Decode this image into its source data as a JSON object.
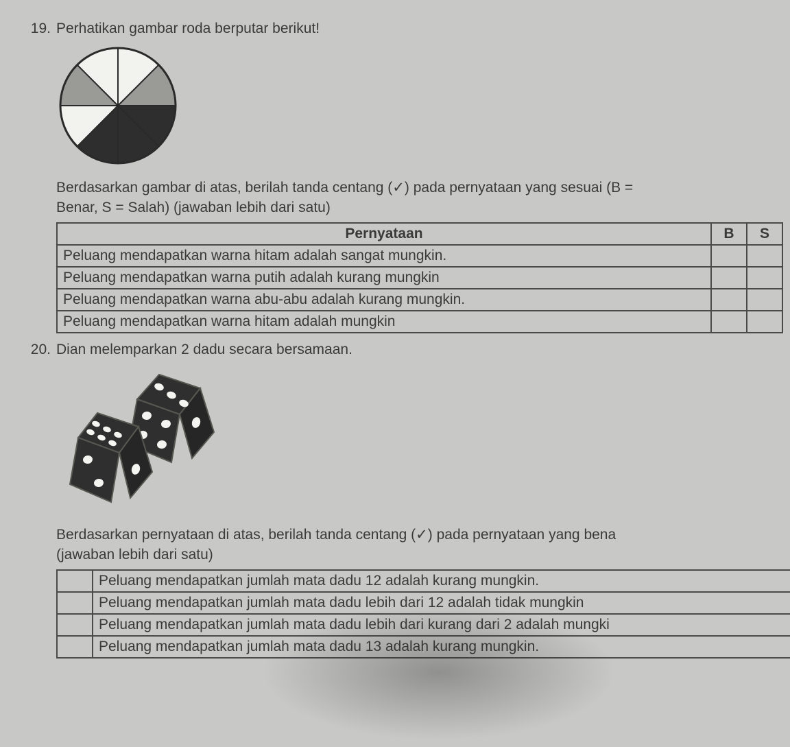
{
  "q19": {
    "number": "19.",
    "prompt": "Perhatikan gambar roda berputar berikut!",
    "pie": {
      "type": "pie",
      "radius": 84,
      "border_color": "#2a2a2a",
      "sectors": [
        {
          "start": 0,
          "end": 45,
          "fill": "#f2f2ee"
        },
        {
          "start": 45,
          "end": 90,
          "fill": "#9a9a96"
        },
        {
          "start": 90,
          "end": 135,
          "fill": "#2e2e2e"
        },
        {
          "start": 135,
          "end": 180,
          "fill": "#2e2e2e"
        },
        {
          "start": 180,
          "end": 225,
          "fill": "#2e2e2e"
        },
        {
          "start": 225,
          "end": 270,
          "fill": "#f2f2ee"
        },
        {
          "start": 270,
          "end": 315,
          "fill": "#9a9a96"
        },
        {
          "start": 315,
          "end": 360,
          "fill": "#f2f2ee"
        }
      ]
    },
    "instruction_1": "Berdasarkan gambar di atas, berilah tanda centang (✓) pada pernyataan yang sesuai (B =",
    "instruction_2": "Benar, S = Salah) (jawaban lebih dari satu)",
    "table": {
      "header_stmt": "Pernyataan",
      "header_b": "B",
      "header_s": "S",
      "rows": [
        "Peluang mendapatkan warna hitam adalah sangat mungkin.",
        "Peluang mendapatkan  warna putih adalah kurang mungkin",
        "Peluang mendapatkan warna abu-abu adalah kurang mungkin.",
        "Peluang mendapatkan warna hitam adalah mungkin"
      ]
    }
  },
  "q20": {
    "number": "20.",
    "prompt": "Dian melemparkan 2 dadu secara bersamaan.",
    "dice": {
      "body_fill": "#2f2f2f",
      "pip_fill": "#f4f4f0",
      "edge_stroke": "#585852"
    },
    "instruction_1": "Berdasarkan pernyataan di atas, berilah tanda centang (✓) pada pernyataan yang bena",
    "instruction_2": "(jawaban lebih dari satu)",
    "table": {
      "rows": [
        "Peluang mendapatkan jumlah mata dadu 12 adalah kurang mungkin.",
        "Peluang mendapatkan jumlah mata dadu lebih dari 12 adalah tidak mungkin",
        "Peluang mendapatkan jumlah mata dadu lebih dari kurang dari 2 adalah mungki",
        "Peluang mendapatkan jumlah mata dadu 13 adalah kurang mungkin."
      ]
    }
  }
}
